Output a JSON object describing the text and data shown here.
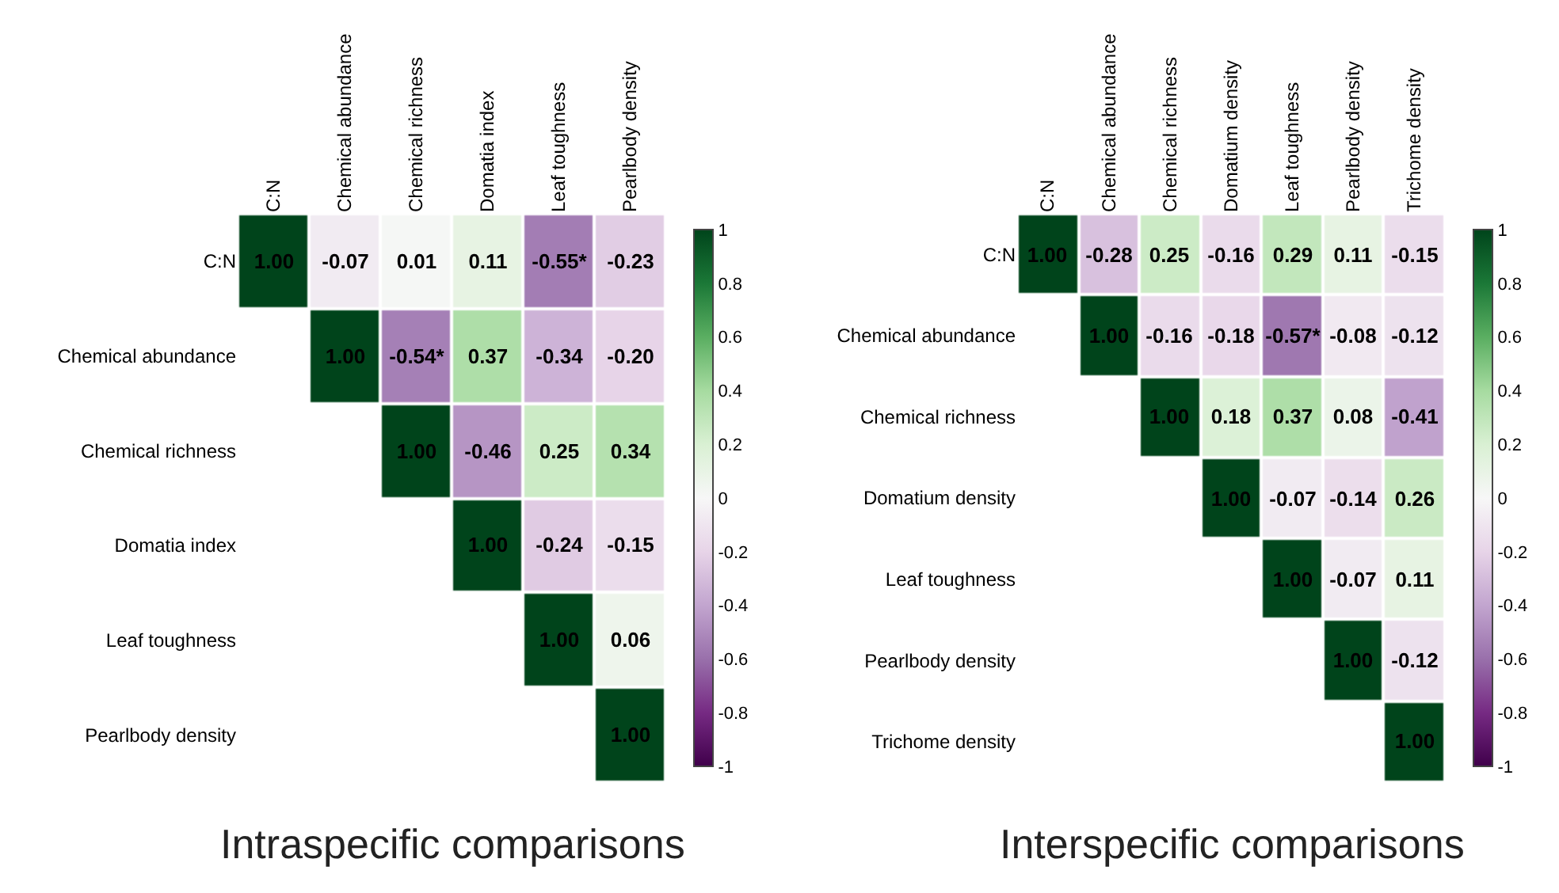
{
  "chart_data": [
    {
      "type": "heatmap",
      "title": "Intraspecific comparisons",
      "categories": [
        "C:N",
        "Chemical abundance",
        "Chemical richness",
        "Domatia index",
        "Leaf toughness",
        "Pearlbody density"
      ],
      "y_categories": [
        "C:N",
        "Chemical abundance",
        "Chemical richness",
        "Domatia index",
        "Leaf toughness",
        "Pearlbody density"
      ],
      "cells": [
        [
          1,
          -0.07,
          0.01,
          0.11,
          -0.55,
          -0.23
        ],
        [
          null,
          1,
          -0.54,
          0.37,
          -0.34,
          -0.2
        ],
        [
          null,
          null,
          1,
          -0.46,
          0.25,
          0.34
        ],
        [
          null,
          null,
          null,
          1,
          -0.24,
          -0.15
        ],
        [
          null,
          null,
          null,
          null,
          1,
          0.06
        ],
        [
          null,
          null,
          null,
          null,
          null,
          1
        ]
      ],
      "cell_labels": [
        [
          "1.00",
          "-0.07",
          "0.01",
          "0.11",
          "-0.55*",
          "-0.23"
        ],
        [
          null,
          "1.00",
          "-0.54*",
          "0.37",
          "-0.34",
          "-0.20"
        ],
        [
          null,
          null,
          "1.00",
          "-0.46",
          "0.25",
          "0.34"
        ],
        [
          null,
          null,
          null,
          "1.00",
          "-0.24",
          "-0.15"
        ],
        [
          null,
          null,
          null,
          null,
          "1.00",
          "0.06"
        ],
        [
          null,
          null,
          null,
          null,
          null,
          "1.00"
        ]
      ],
      "clim": [
        -1,
        1
      ],
      "cticks": [
        1,
        0.8,
        0.6,
        0.4,
        0.2,
        0,
        -0.2,
        -0.4,
        -0.6,
        -0.8,
        -1
      ]
    },
    {
      "type": "heatmap",
      "title": "Interspecific comparisons",
      "categories": [
        "C:N",
        "Chemical abundance",
        "Chemical richness",
        "Domatium density",
        "Leaf toughness",
        "Pearlbody density",
        "Trichome density"
      ],
      "y_categories": [
        "C:N",
        "Chemical abundance",
        "Chemical richness",
        "Domatium density",
        "Leaf toughness",
        "Pearlbody density",
        "Trichome density"
      ],
      "cells": [
        [
          1,
          -0.28,
          0.25,
          -0.16,
          0.29,
          0.11,
          -0.15
        ],
        [
          null,
          1,
          -0.16,
          -0.18,
          -0.57,
          -0.08,
          -0.12
        ],
        [
          null,
          null,
          1,
          0.18,
          0.37,
          0.08,
          -0.41
        ],
        [
          null,
          null,
          null,
          1,
          -0.07,
          -0.14,
          0.26
        ],
        [
          null,
          null,
          null,
          null,
          1,
          -0.07,
          0.11
        ],
        [
          null,
          null,
          null,
          null,
          null,
          1,
          -0.12
        ],
        [
          null,
          null,
          null,
          null,
          null,
          null,
          1
        ]
      ],
      "cell_labels": [
        [
          "1.00",
          "-0.28",
          "0.25",
          "-0.16",
          "0.29",
          "0.11",
          "-0.15"
        ],
        [
          null,
          "1.00",
          "-0.16",
          "-0.18",
          "-0.57*",
          "-0.08",
          "-0.12"
        ],
        [
          null,
          null,
          "1.00",
          "0.18",
          "0.37",
          "0.08",
          "-0.41"
        ],
        [
          null,
          null,
          null,
          "1.00",
          "-0.07",
          "-0.14",
          "0.26"
        ],
        [
          null,
          null,
          null,
          null,
          "1.00",
          "-0.07",
          "0.11"
        ],
        [
          null,
          null,
          null,
          null,
          null,
          "1.00",
          "-0.12"
        ],
        [
          null,
          null,
          null,
          null,
          null,
          null,
          "1.00"
        ]
      ],
      "clim": [
        -1,
        1
      ],
      "cticks": [
        1,
        0.8,
        0.6,
        0.4,
        0.2,
        0,
        -0.2,
        -0.4,
        -0.6,
        -0.8,
        -1
      ]
    }
  ]
}
